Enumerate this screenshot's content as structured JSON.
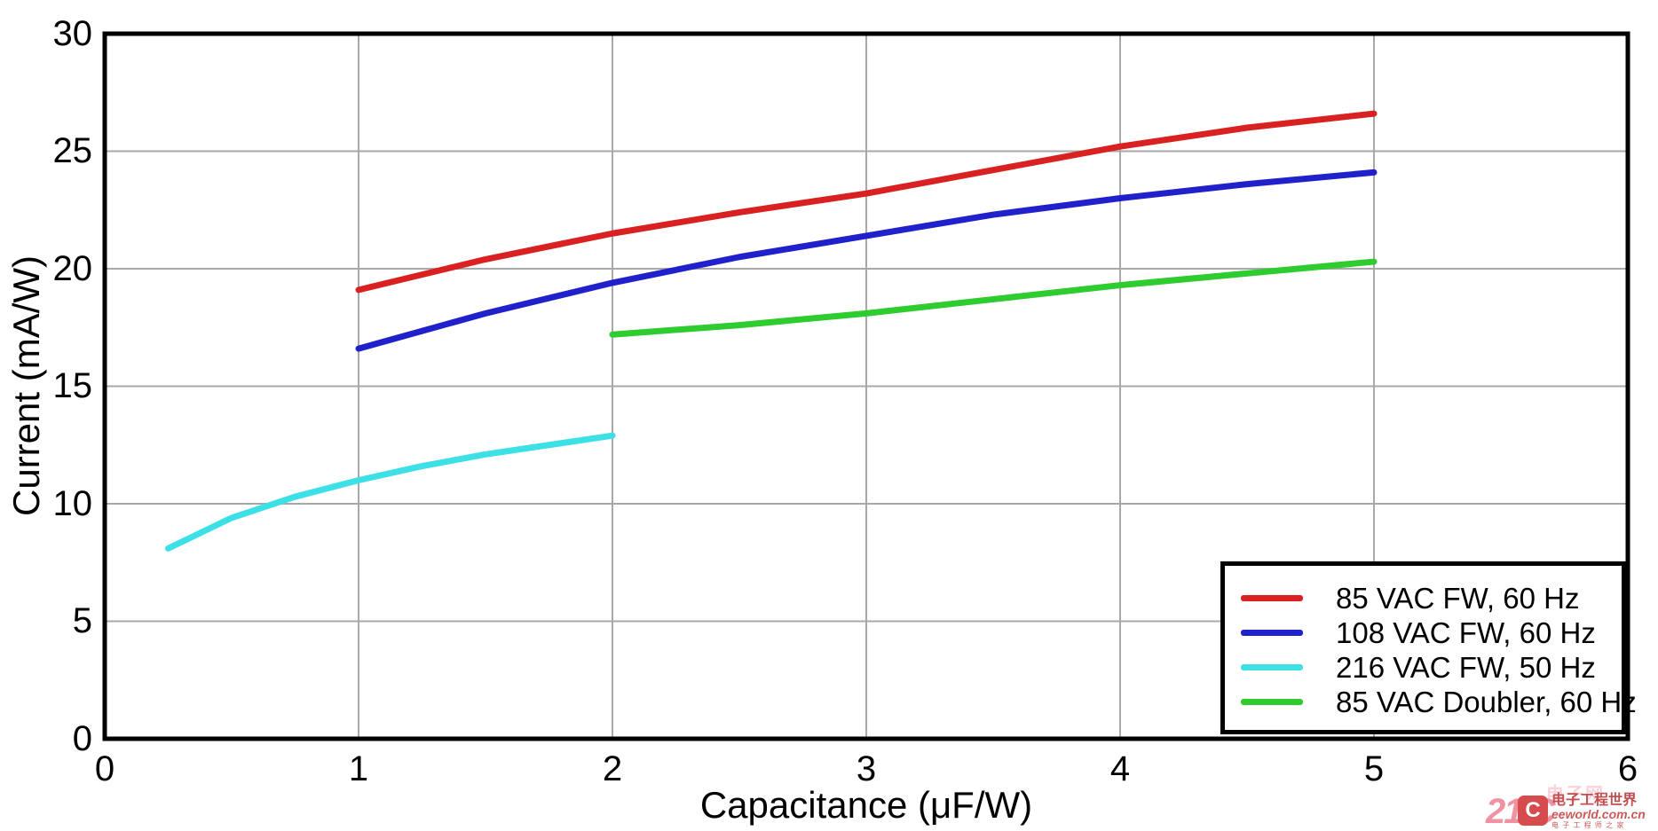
{
  "chart_data": {
    "type": "line",
    "title": "",
    "xlabel": "Capacitance (μF/W)",
    "ylabel": "Current (mA/W)",
    "xlim": [
      0,
      6
    ],
    "ylim": [
      0,
      30
    ],
    "x_ticks": [
      "0",
      "1",
      "2",
      "3",
      "4",
      "5",
      "6"
    ],
    "y_ticks": [
      "30",
      "25",
      "20",
      "15",
      "10",
      "5",
      "0"
    ],
    "grid": true,
    "legend_position": "bottom-right",
    "series": [
      {
        "name": "85 VAC FW, 60 Hz",
        "color": "#d92121",
        "points": [
          [
            1,
            19.1
          ],
          [
            1.5,
            20.4
          ],
          [
            2,
            21.5
          ],
          [
            2.5,
            22.4
          ],
          [
            3,
            23.2
          ],
          [
            3.5,
            24.2
          ],
          [
            4,
            25.2
          ],
          [
            4.5,
            26.0
          ],
          [
            5,
            26.6
          ]
        ]
      },
      {
        "name": "108 VAC FW, 60 Hz",
        "color": "#2121cc",
        "points": [
          [
            1,
            16.6
          ],
          [
            1.5,
            18.1
          ],
          [
            2,
            19.4
          ],
          [
            2.5,
            20.5
          ],
          [
            3,
            21.4
          ],
          [
            3.5,
            22.3
          ],
          [
            4,
            23.0
          ],
          [
            4.5,
            23.6
          ],
          [
            5,
            24.1
          ]
        ]
      },
      {
        "name": "216 VAC FW, 50 Hz",
        "color": "#3ce0e6",
        "points": [
          [
            0.25,
            8.1
          ],
          [
            0.5,
            9.4
          ],
          [
            0.75,
            10.3
          ],
          [
            1,
            11.0
          ],
          [
            1.25,
            11.6
          ],
          [
            1.5,
            12.1
          ],
          [
            1.75,
            12.5
          ],
          [
            2,
            12.9
          ]
        ]
      },
      {
        "name": "85 VAC Doubler, 60 Hz",
        "color": "#2ecc2e",
        "points": [
          [
            2,
            17.2
          ],
          [
            2.5,
            17.6
          ],
          [
            3,
            18.1
          ],
          [
            3.5,
            18.7
          ],
          [
            4,
            19.3
          ],
          [
            4.5,
            19.8
          ],
          [
            5,
            20.3
          ]
        ]
      }
    ],
    "colors": {
      "axis": "#000000",
      "gridline": "#a8a8a8",
      "background": "#ffffff"
    }
  },
  "watermark": {
    "brand": "21IC",
    "brand_faint": "电子网",
    "logo_letter": "C",
    "site_name": "电子工程世界",
    "site_url": "eeworld.com.cn",
    "tagline": "电 子 工 程 师 之 家"
  }
}
